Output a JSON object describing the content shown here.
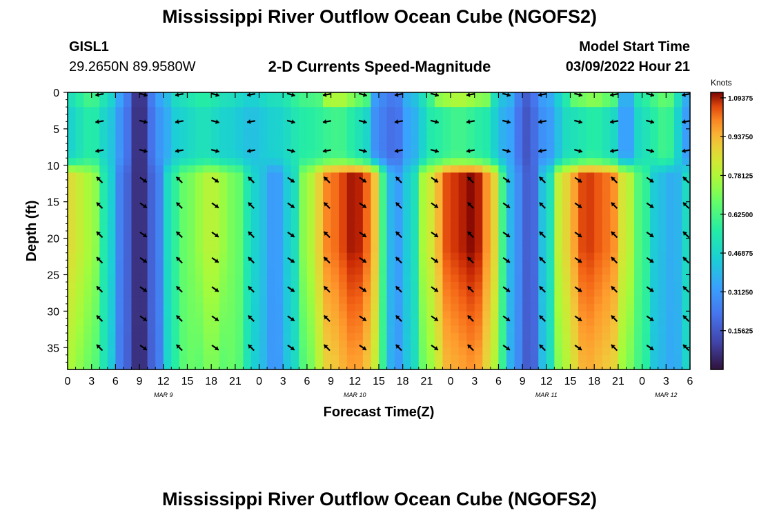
{
  "header": {
    "title": "Mississippi River Outflow Ocean Cube (NGOFS2)",
    "station_id": "GISL1",
    "station_coords": "29.2650N  89.9580W",
    "plot_title": "2-D Currents Speed-Magnitude",
    "model_start_label": "Model Start Time",
    "model_start_value": "03/09/2022 Hour 21"
  },
  "footer": {
    "title": "Mississippi River Outflow Ocean Cube (NGOFS2)"
  },
  "chart_data": {
    "type": "heatmap",
    "title": "2-D Currents Speed-Magnitude",
    "xlabel": "Forecast Time(Z)",
    "ylabel": "Depth (ft)",
    "xlim": [
      0,
      78
    ],
    "ylim": [
      0,
      38
    ],
    "x_ticks": [
      0,
      3,
      6,
      9,
      12,
      15,
      18,
      21,
      24,
      27,
      30,
      33,
      36,
      39,
      42,
      45,
      48,
      51,
      54,
      57,
      60,
      63,
      66,
      69,
      72,
      75,
      78
    ],
    "x_tick_labels": [
      "0",
      "3",
      "6",
      "9",
      "12",
      "15",
      "18",
      "21",
      "0",
      "3",
      "6",
      "9",
      "12",
      "15",
      "18",
      "21",
      "0",
      "3",
      "6",
      "9",
      "12",
      "15",
      "18",
      "21",
      "0",
      "3",
      "6"
    ],
    "y_ticks": [
      0,
      5,
      10,
      15,
      20,
      25,
      30,
      35
    ],
    "y_tick_labels": [
      "0",
      "5",
      "10",
      "15",
      "20",
      "25",
      "30",
      "35"
    ],
    "date_labels": [
      {
        "x": 12,
        "label": "MAR 9"
      },
      {
        "x": 36,
        "label": "MAR 10"
      },
      {
        "x": 60,
        "label": "MAR 11"
      },
      {
        "x": 75,
        "label": "MAR 12"
      }
    ],
    "colorbar": {
      "title": "Knots",
      "min": 0,
      "max": 1.09375,
      "tick_values": [
        1.09375,
        0.9375,
        0.78125,
        0.625,
        0.46875,
        0.3125,
        0.15625
      ],
      "tick_labels": [
        "1.09375",
        "0.93750",
        "0.78125",
        "0.62500",
        "0.46875",
        "0.31250",
        "0.15625"
      ]
    },
    "speed_profile": {
      "description": "Approximate current speed (knots) along forecast time for deep (below ~11 ft) and surface layers",
      "deep_layer": [
        [
          0,
          0.85
        ],
        [
          3,
          0.75
        ],
        [
          5,
          0.5
        ],
        [
          6.5,
          0.25
        ],
        [
          9,
          0.05
        ],
        [
          11.5,
          0.25
        ],
        [
          13,
          0.55
        ],
        [
          15,
          0.68
        ],
        [
          18,
          0.78
        ],
        [
          21,
          0.68
        ],
        [
          23.5,
          0.45
        ],
        [
          26,
          0.3
        ],
        [
          28,
          0.45
        ],
        [
          30,
          0.75
        ],
        [
          33,
          1.0
        ],
        [
          36,
          1.08
        ],
        [
          38,
          1.0
        ],
        [
          39.5,
          0.6
        ],
        [
          41,
          0.3
        ],
        [
          43,
          0.45
        ],
        [
          45,
          0.8
        ],
        [
          48,
          1.05
        ],
        [
          51,
          1.09
        ],
        [
          53,
          0.95
        ],
        [
          54.5,
          0.6
        ],
        [
          56,
          0.3
        ],
        [
          58,
          0.15
        ],
        [
          60,
          0.45
        ],
        [
          62,
          0.85
        ],
        [
          65,
          1.05
        ],
        [
          68,
          1.0
        ],
        [
          70,
          0.8
        ],
        [
          72,
          0.6
        ],
        [
          74,
          0.4
        ],
        [
          76,
          0.35
        ],
        [
          78,
          0.5
        ]
      ],
      "surface_layer": [
        [
          0,
          0.45
        ],
        [
          3,
          0.55
        ],
        [
          5,
          0.45
        ],
        [
          6.5,
          0.3
        ],
        [
          9,
          0.05
        ],
        [
          11.5,
          0.3
        ],
        [
          14,
          0.45
        ],
        [
          17,
          0.5
        ],
        [
          20,
          0.45
        ],
        [
          23,
          0.4
        ],
        [
          26,
          0.45
        ],
        [
          30,
          0.55
        ],
        [
          34,
          0.6
        ],
        [
          37,
          0.5
        ],
        [
          39,
          0.25
        ],
        [
          41,
          0.2
        ],
        [
          43,
          0.35
        ],
        [
          46,
          0.55
        ],
        [
          49,
          0.6
        ],
        [
          52,
          0.55
        ],
        [
          55,
          0.35
        ],
        [
          57.5,
          0.15
        ],
        [
          60,
          0.3
        ],
        [
          63,
          0.5
        ],
        [
          66,
          0.55
        ],
        [
          68,
          0.5
        ],
        [
          70,
          0.3
        ],
        [
          72,
          0.5
        ],
        [
          75,
          0.6
        ],
        [
          78,
          0.3
        ]
      ]
    },
    "vector_rows_depth_ft": [
      0.3,
      4,
      8,
      12,
      15.5,
      19.5,
      23,
      27,
      31,
      35
    ],
    "vector_cols_time_h": [
      4,
      9.5,
      14,
      18.5,
      23,
      28,
      32.5,
      37,
      41.5,
      46,
      50.5,
      55,
      59.5,
      64,
      68.5,
      73,
      77.5
    ]
  }
}
